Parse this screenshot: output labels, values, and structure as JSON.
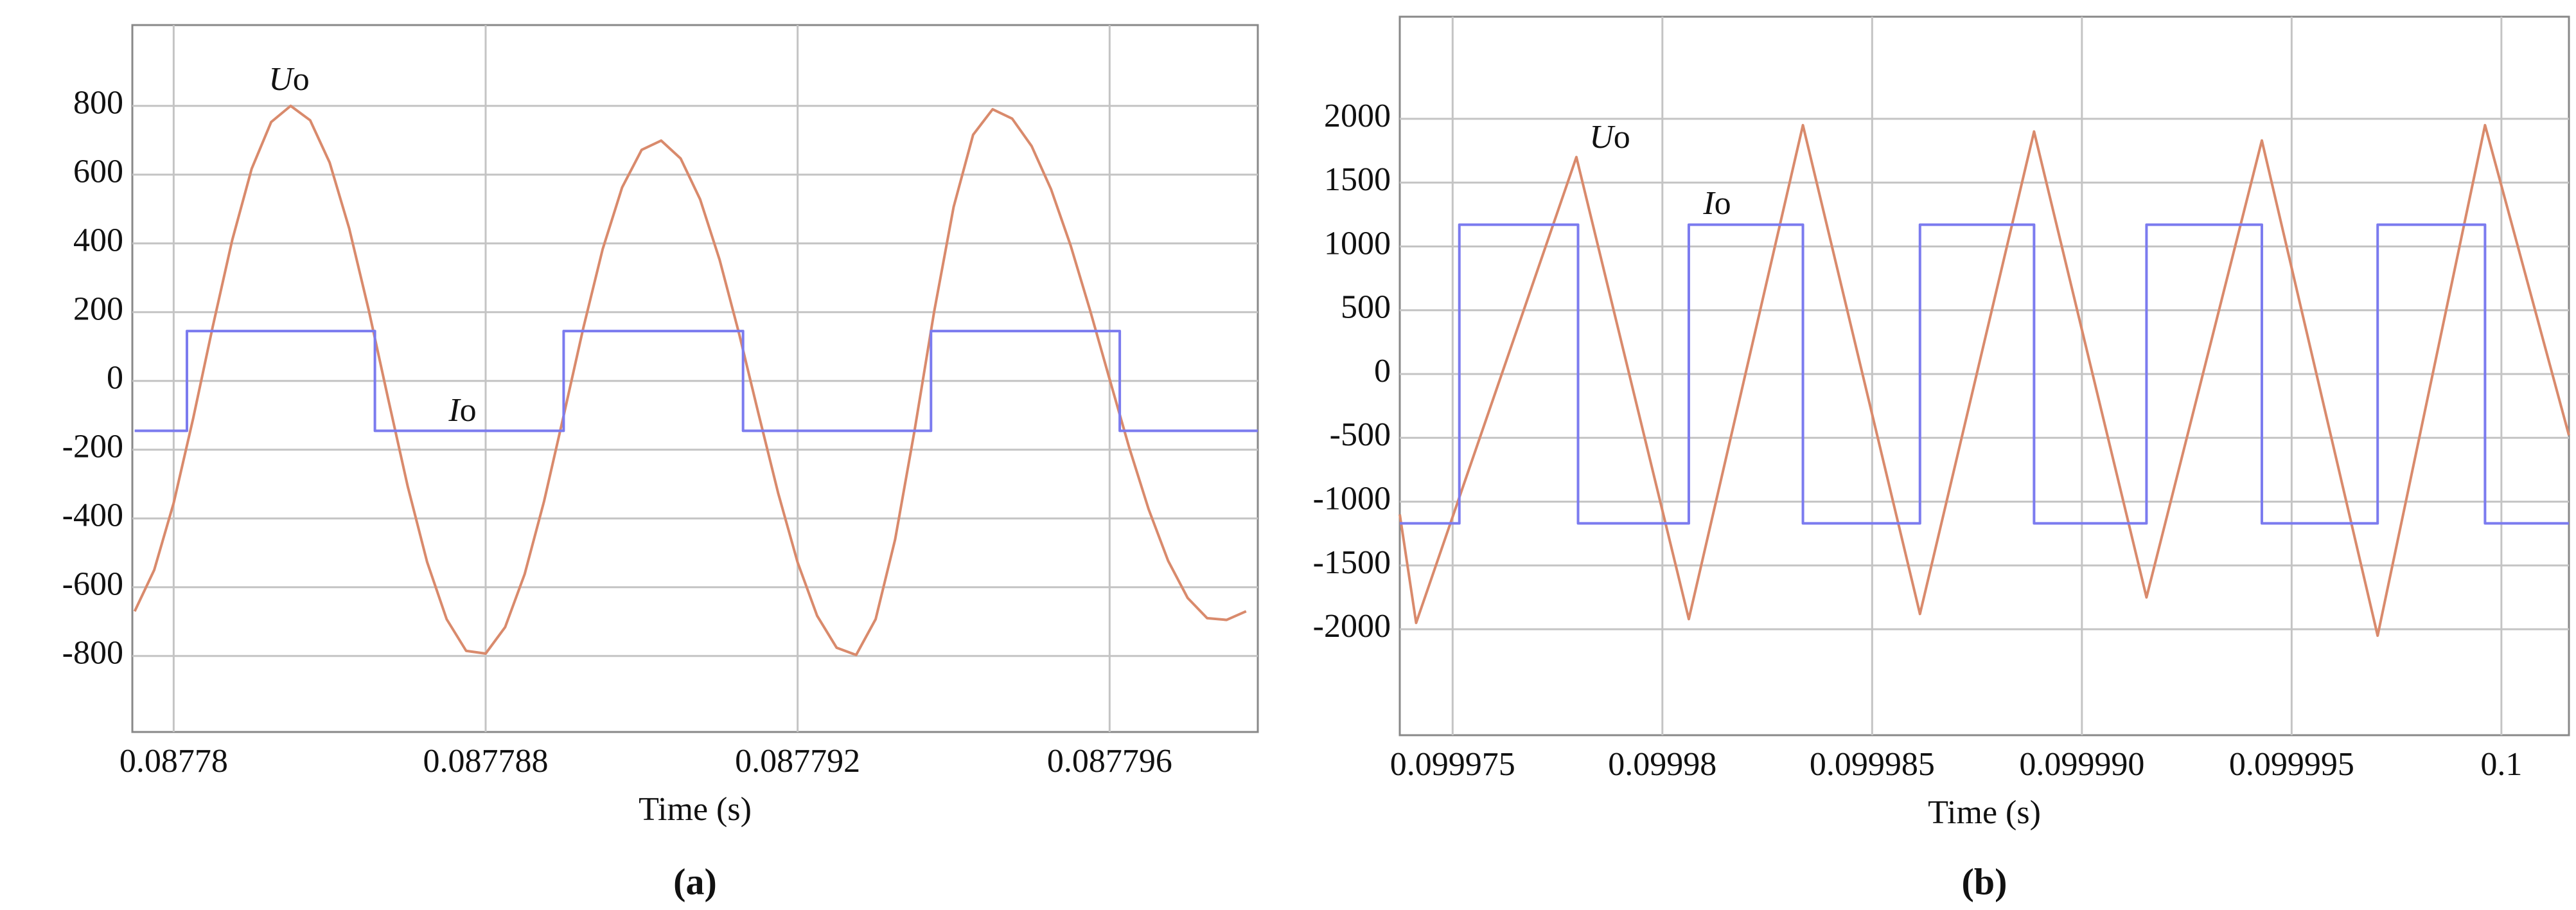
{
  "chart_data": [
    {
      "type": "line",
      "xlabel": "Time (s)",
      "caption": "(a)",
      "xlim": [
        0.08778347,
        0.0877979
      ],
      "ylim": [
        -1021,
        1035
      ],
      "xticks": [
        {
          "value": 0.087784,
          "label": "0.08778"
        },
        0.087788,
        0.087792,
        0.087796
      ],
      "yticks": [
        -800,
        -600,
        -400,
        -200,
        0,
        200,
        400,
        600,
        800
      ],
      "grid": true,
      "series": [
        {
          "name": "Uo",
          "color": "#d98a6c",
          "x": [
            0.0877835,
            0.08778375,
            0.087784,
            0.08778425,
            0.0877845,
            0.08778475,
            0.087785,
            0.08778525,
            0.0877855,
            0.08778575,
            0.087786,
            0.08778625,
            0.0877865,
            0.08778675,
            0.087787,
            0.08778725,
            0.0877875,
            0.08778775,
            0.087788,
            0.08778825,
            0.0877885,
            0.08778875,
            0.087789,
            0.08778925,
            0.0877895,
            0.08778975,
            0.08779,
            0.08779025,
            0.0877905,
            0.08779075,
            0.087791,
            0.08779125,
            0.0877915,
            0.08779175,
            0.087792,
            0.08779225,
            0.0877925,
            0.08779275,
            0.087793,
            0.08779325,
            0.0877935,
            0.08779375,
            0.087794,
            0.08779425,
            0.0877945,
            0.08779475,
            0.087795,
            0.08779525,
            0.0877955,
            0.08779575,
            0.087796,
            0.08779625,
            0.0877965,
            0.08779675,
            0.087797,
            0.08779725,
            0.0877975,
            0.08779775
          ],
          "values": [
            -670,
            -550,
            -355,
            -109,
            157,
            409,
            617,
            753,
            800,
            758,
            635,
            444,
            207,
            -52,
            -306,
            -527,
            -693,
            -785,
            -793,
            -716,
            -562,
            -349,
            -101,
            152,
            383,
            563,
            672,
            699,
            647,
            528,
            352,
            137,
            -97,
            -326,
            -528,
            -683,
            -776,
            -797,
            -693,
            -461,
            -143,
            201,
            506,
            716,
            790,
            763,
            683,
            557,
            394,
            205,
            5,
            -193,
            -373,
            -523,
            -631,
            -690,
            -695,
            -670
          ]
        },
        {
          "name": "Io",
          "color": "#7b7bef",
          "x": [
            0.0877835,
            0.08778417,
            0.08778417,
            0.08778658,
            0.08778658,
            0.087789,
            0.087789,
            0.0877913,
            0.0877913,
            0.08779371,
            0.08779371,
            0.08779613,
            0.08779613,
            0.0877979
          ],
          "values": [
            -145,
            -145,
            145,
            145,
            -145,
            -145,
            145,
            145,
            -145,
            -145,
            145,
            145,
            -145,
            -145
          ]
        }
      ]
    },
    {
      "type": "line",
      "xlabel": "Time (s)",
      "caption": "(b)",
      "xlim": [
        0.09997374,
        0.10000161
      ],
      "ylim": [
        -2830,
        2800
      ],
      "xticks": [
        0.099975,
        0.09998,
        0.099985,
        {
          "value": 0.09999,
          "label": "0.099990"
        },
        0.099995,
        0.1
      ],
      "yticks": [
        -2000,
        -1500,
        -1000,
        -500,
        0,
        500,
        1000,
        1500,
        2000
      ],
      "grid": true,
      "series": [
        {
          "name": "Uo",
          "color": "#d98a6c",
          "x": [
            0.09997374,
            0.09997413,
            0.09997795,
            0.09998063,
            0.09998335,
            0.09998614,
            0.09998886,
            0.09999154,
            0.09999429,
            0.09999705,
            0.09999961,
            0.10000161
          ],
          "values": [
            -1100,
            -1950,
            1700,
            -1920,
            1950,
            -1880,
            1900,
            -1750,
            1830,
            -2050,
            1950,
            -480
          ]
        },
        {
          "name": "Io",
          "color": "#7b7bef",
          "x": [
            0.09997374,
            0.09997516,
            0.09997516,
            0.09997799,
            0.09997799,
            0.09998063,
            0.09998063,
            0.09998335,
            0.09998335,
            0.09998614,
            0.09998614,
            0.09998886,
            0.09998886,
            0.09999154,
            0.09999154,
            0.09999429,
            0.09999429,
            0.09999705,
            0.09999705,
            0.09999961,
            0.09999961,
            0.10000161
          ],
          "values": [
            -1170,
            -1170,
            1170,
            1170,
            -1170,
            -1170,
            1170,
            1170,
            -1170,
            -1170,
            1170,
            1170,
            -1170,
            -1170,
            1170,
            1170,
            -1170,
            -1170,
            1170,
            1170,
            -1170,
            -1170
          ]
        }
      ]
    }
  ]
}
